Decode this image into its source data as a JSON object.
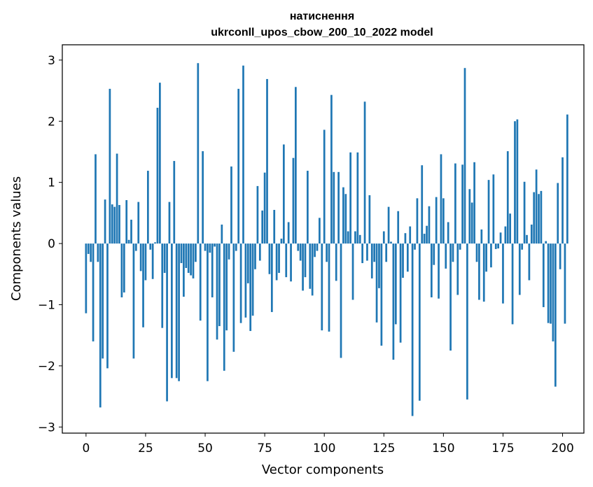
{
  "chart_data": {
    "type": "bar",
    "title": "натиснення",
    "subtitle": "ukrconll_upos_cbow_200_10_2022 model",
    "xlabel": "Vector components",
    "ylabel": "Components values",
    "xlim": [
      -9.95,
      208.95
    ],
    "ylim": [
      -3.1,
      3.25
    ],
    "x_ticks": [
      0,
      25,
      50,
      75,
      100,
      125,
      150,
      175,
      200
    ],
    "x_tick_labels": [
      "0",
      "25",
      "50",
      "75",
      "100",
      "125",
      "150",
      "175",
      "200"
    ],
    "y_ticks": [
      -3,
      -2,
      -1,
      0,
      1,
      2,
      3
    ],
    "y_tick_labels": [
      "−3",
      "−2",
      "−1",
      "0",
      "1",
      "2",
      "3"
    ],
    "grid": false,
    "bar_color": "#1f77b4",
    "x_start": 0,
    "values": [
      -1.14,
      -0.17,
      -0.3,
      -1.6,
      1.46,
      -0.3,
      -2.68,
      -1.88,
      0.72,
      -2.04,
      2.53,
      0.64,
      0.6,
      1.47,
      0.63,
      -0.88,
      -0.8,
      0.71,
      0.06,
      0.39,
      -1.88,
      -0.12,
      0.68,
      -0.45,
      -1.37,
      -0.6,
      1.19,
      -0.1,
      -0.58,
      0.02,
      2.22,
      2.63,
      -1.38,
      -0.48,
      -2.58,
      0.68,
      -2.2,
      1.35,
      -2.2,
      -2.25,
      -0.32,
      -0.87,
      -0.4,
      -0.48,
      -0.52,
      -0.57,
      -0.3,
      2.95,
      -1.26,
      1.51,
      -0.12,
      -2.25,
      -0.15,
      -0.88,
      -0.05,
      -1.57,
      -1.35,
      0.31,
      -2.08,
      -1.42,
      -0.26,
      1.26,
      -1.77,
      -0.12,
      2.53,
      -1.3,
      2.91,
      -1.21,
      -0.65,
      -1.43,
      -1.18,
      -0.42,
      0.94,
      -0.28,
      0.54,
      1.16,
      2.69,
      -0.5,
      -1.12,
      0.55,
      -0.6,
      -0.48,
      0.08,
      1.62,
      -0.55,
      0.35,
      -0.62,
      1.4,
      2.56,
      -0.12,
      -0.28,
      -0.77,
      -0.55,
      1.19,
      -0.74,
      -0.85,
      -0.22,
      -0.12,
      0.42,
      -1.42,
      1.86,
      -0.3,
      -1.44,
      2.43,
      1.17,
      -0.61,
      1.17,
      -1.87,
      0.92,
      0.81,
      0.2,
      1.49,
      -0.92,
      0.2,
      1.49,
      0.14,
      -0.32,
      2.32,
      -0.28,
      0.79,
      -0.57,
      -0.3,
      -1.29,
      -0.73,
      -1.67,
      0.2,
      -0.3,
      0.6,
      0.03,
      -1.9,
      -1.32,
      0.53,
      -1.62,
      -0.56,
      0.17,
      -0.46,
      0.28,
      -2.82,
      -0.1,
      0.74,
      -2.57,
      1.28,
      0.16,
      0.29,
      0.61,
      -0.88,
      -0.35,
      0.76,
      -0.9,
      1.46,
      0.74,
      -0.41,
      0.35,
      -1.75,
      -0.3,
      1.31,
      -0.84,
      -0.1,
      1.29,
      2.87,
      -2.55,
      0.89,
      0.67,
      1.33,
      -0.3,
      -0.92,
      0.23,
      -0.95,
      -0.46,
      1.04,
      -0.39,
      1.13,
      -0.09,
      -0.08,
      0.18,
      -0.98,
      0.28,
      1.51,
      0.49,
      -1.32,
      2.0,
      2.03,
      -0.84,
      -0.1,
      1.01,
      0.14,
      -0.6,
      0.31,
      0.84,
      1.21,
      0.81,
      0.86,
      -1.04,
      0.04,
      -1.3,
      -1.31,
      -1.6,
      -2.34,
      0.99,
      -0.42,
      1.41,
      -1.31,
      2.11
    ]
  }
}
